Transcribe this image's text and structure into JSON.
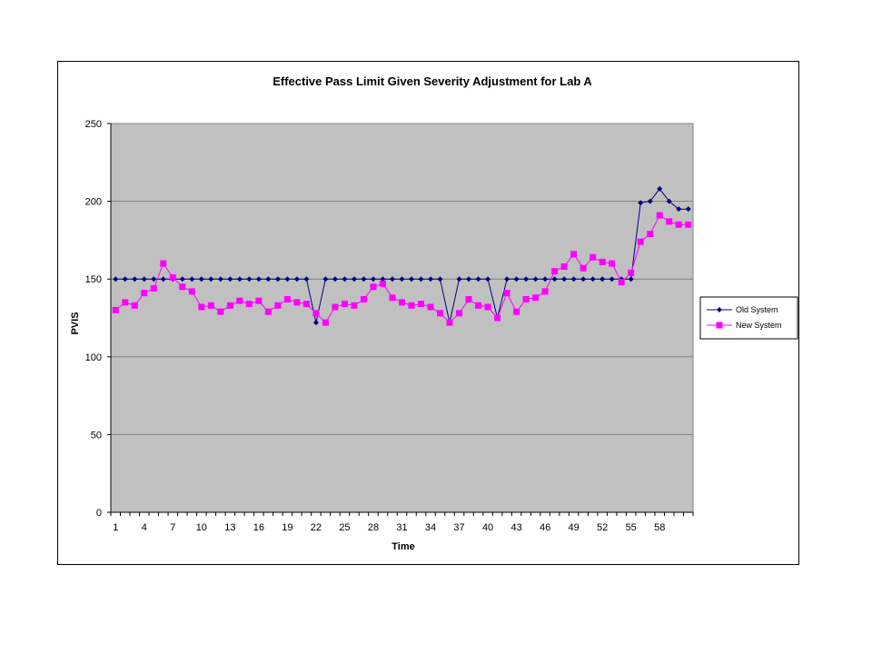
{
  "chart_data": {
    "type": "line",
    "title": "Effective Pass Limit Given Severity Adjustment for Lab A",
    "xlabel": "Time",
    "ylabel": "PVIS",
    "ylim": [
      0,
      250
    ],
    "yticks": [
      0,
      50,
      100,
      150,
      200,
      250
    ],
    "x": [
      1,
      2,
      3,
      4,
      5,
      6,
      7,
      8,
      9,
      10,
      11,
      12,
      13,
      14,
      15,
      16,
      17,
      18,
      19,
      20,
      21,
      22,
      23,
      24,
      25,
      26,
      27,
      28,
      29,
      30,
      31,
      32,
      33,
      34,
      35,
      36,
      37,
      38,
      39,
      40,
      41,
      42,
      43,
      44,
      45,
      46,
      47,
      48,
      49,
      50,
      51,
      52,
      53,
      54,
      55,
      56,
      57,
      58,
      59,
      60,
      61
    ],
    "xtick_labels": [
      "1",
      "4",
      "7",
      "10",
      "13",
      "16",
      "19",
      "22",
      "25",
      "28",
      "31",
      "34",
      "37",
      "40",
      "43",
      "46",
      "49",
      "52",
      "55",
      "58"
    ],
    "grid": "horizontal",
    "legend_position": "right",
    "series": [
      {
        "name": "Old System",
        "color": "#000080",
        "marker": "diamond",
        "values": [
          150,
          150,
          150,
          150,
          150,
          150,
          150,
          150,
          150,
          150,
          150,
          150,
          150,
          150,
          150,
          150,
          150,
          150,
          150,
          150,
          150,
          122,
          150,
          150,
          150,
          150,
          150,
          150,
          150,
          150,
          150,
          150,
          150,
          150,
          150,
          122,
          150,
          150,
          150,
          150,
          125,
          150,
          150,
          150,
          150,
          150,
          150,
          150,
          150,
          150,
          150,
          150,
          150,
          150,
          150,
          199,
          200,
          208,
          200,
          195,
          195
        ]
      },
      {
        "name": "New System",
        "color": "#FF00FF",
        "marker": "square",
        "values": [
          130,
          135,
          133,
          141,
          144,
          160,
          151,
          145,
          142,
          132,
          133,
          129,
          133,
          136,
          134,
          136,
          129,
          133,
          137,
          135,
          134,
          128,
          122,
          132,
          134,
          133,
          137,
          145,
          147,
          138,
          135,
          133,
          134,
          132,
          128,
          122,
          128,
          137,
          133,
          132,
          125,
          141,
          129,
          137,
          138,
          142,
          155,
          158,
          166,
          157,
          164,
          161,
          160,
          148,
          154,
          174,
          179,
          191,
          187,
          185,
          185
        ]
      }
    ]
  }
}
